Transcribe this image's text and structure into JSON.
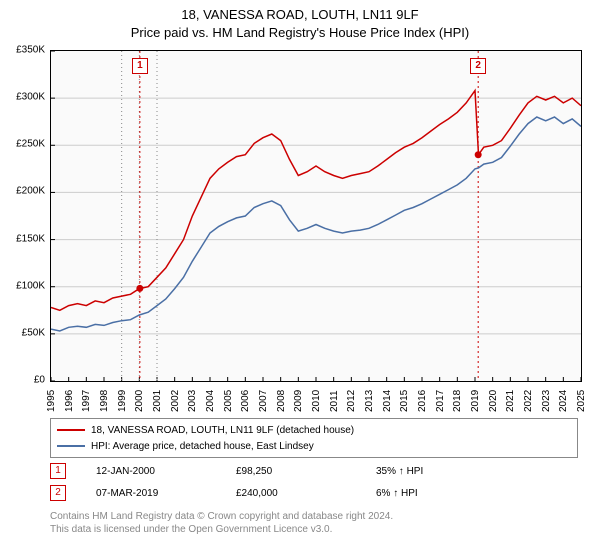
{
  "title": {
    "line1": "18, VANESSA ROAD, LOUTH, LN11 9LF",
    "line2": "Price paid vs. HM Land Registry's House Price Index (HPI)",
    "fontsize": 13,
    "color": "#000000"
  },
  "chart": {
    "type": "line",
    "background_color": "#fafafa",
    "border_color": "#000000",
    "grid_color": "#cccccc",
    "x_axis": {
      "min_year": 1995,
      "max_year": 2025,
      "tick_years": [
        1995,
        1996,
        1997,
        1998,
        1999,
        2000,
        2001,
        2002,
        2003,
        2004,
        2005,
        2006,
        2007,
        2008,
        2009,
        2010,
        2011,
        2012,
        2013,
        2014,
        2015,
        2016,
        2017,
        2018,
        2019,
        2020,
        2021,
        2022,
        2023,
        2024,
        2025
      ],
      "label_fontsize": 10,
      "label_rotation": -90
    },
    "y_axis": {
      "min": 0,
      "max": 350000,
      "tick_step": 50000,
      "tick_labels": [
        "£0",
        "£50K",
        "£100K",
        "£150K",
        "£200K",
        "£250K",
        "£300K",
        "£350K"
      ],
      "label_fontsize": 10
    },
    "series": [
      {
        "name": "18, VANESSA ROAD, LOUTH, LN11 9LF (detached house)",
        "color": "#cc0000",
        "line_width": 1.5,
        "data": [
          [
            1995,
            78000
          ],
          [
            1995.5,
            75000
          ],
          [
            1996,
            80000
          ],
          [
            1996.5,
            82000
          ],
          [
            1997,
            80000
          ],
          [
            1997.5,
            85000
          ],
          [
            1998,
            83000
          ],
          [
            1998.5,
            88000
          ],
          [
            1999,
            90000
          ],
          [
            1999.5,
            92000
          ],
          [
            2000,
            98000
          ],
          [
            2000.5,
            100000
          ],
          [
            2001,
            110000
          ],
          [
            2001.5,
            120000
          ],
          [
            2002,
            135000
          ],
          [
            2002.5,
            150000
          ],
          [
            2003,
            175000
          ],
          [
            2003.5,
            195000
          ],
          [
            2004,
            215000
          ],
          [
            2004.5,
            225000
          ],
          [
            2005,
            232000
          ],
          [
            2005.5,
            238000
          ],
          [
            2006,
            240000
          ],
          [
            2006.5,
            252000
          ],
          [
            2007,
            258000
          ],
          [
            2007.5,
            262000
          ],
          [
            2008,
            255000
          ],
          [
            2008.5,
            235000
          ],
          [
            2009,
            218000
          ],
          [
            2009.5,
            222000
          ],
          [
            2010,
            228000
          ],
          [
            2010.5,
            222000
          ],
          [
            2011,
            218000
          ],
          [
            2011.5,
            215000
          ],
          [
            2012,
            218000
          ],
          [
            2012.5,
            220000
          ],
          [
            2013,
            222000
          ],
          [
            2013.5,
            228000
          ],
          [
            2014,
            235000
          ],
          [
            2014.5,
            242000
          ],
          [
            2015,
            248000
          ],
          [
            2015.5,
            252000
          ],
          [
            2016,
            258000
          ],
          [
            2016.5,
            265000
          ],
          [
            2017,
            272000
          ],
          [
            2017.5,
            278000
          ],
          [
            2018,
            285000
          ],
          [
            2018.5,
            295000
          ],
          [
            2019,
            308000
          ],
          [
            2019.2,
            240000
          ],
          [
            2019.5,
            248000
          ],
          [
            2020,
            250000
          ],
          [
            2020.5,
            255000
          ],
          [
            2021,
            268000
          ],
          [
            2021.5,
            282000
          ],
          [
            2022,
            295000
          ],
          [
            2022.5,
            302000
          ],
          [
            2023,
            298000
          ],
          [
            2023.5,
            302000
          ],
          [
            2024,
            295000
          ],
          [
            2024.5,
            300000
          ],
          [
            2025,
            292000
          ]
        ]
      },
      {
        "name": "HPI: Average price, detached house, East Lindsey",
        "color": "#4a6fa5",
        "line_width": 1.5,
        "data": [
          [
            1995,
            55000
          ],
          [
            1995.5,
            53000
          ],
          [
            1996,
            57000
          ],
          [
            1996.5,
            58000
          ],
          [
            1997,
            57000
          ],
          [
            1997.5,
            60000
          ],
          [
            1998,
            59000
          ],
          [
            1998.5,
            62000
          ],
          [
            1999,
            64000
          ],
          [
            1999.5,
            65000
          ],
          [
            2000,
            70000
          ],
          [
            2000.5,
            73000
          ],
          [
            2001,
            80000
          ],
          [
            2001.5,
            87000
          ],
          [
            2002,
            98000
          ],
          [
            2002.5,
            110000
          ],
          [
            2003,
            127000
          ],
          [
            2003.5,
            142000
          ],
          [
            2004,
            157000
          ],
          [
            2004.5,
            164000
          ],
          [
            2005,
            169000
          ],
          [
            2005.5,
            173000
          ],
          [
            2006,
            175000
          ],
          [
            2006.5,
            184000
          ],
          [
            2007,
            188000
          ],
          [
            2007.5,
            191000
          ],
          [
            2008,
            186000
          ],
          [
            2008.5,
            171000
          ],
          [
            2009,
            159000
          ],
          [
            2009.5,
            162000
          ],
          [
            2010,
            166000
          ],
          [
            2010.5,
            162000
          ],
          [
            2011,
            159000
          ],
          [
            2011.5,
            157000
          ],
          [
            2012,
            159000
          ],
          [
            2012.5,
            160000
          ],
          [
            2013,
            162000
          ],
          [
            2013.5,
            166000
          ],
          [
            2014,
            171000
          ],
          [
            2014.5,
            176000
          ],
          [
            2015,
            181000
          ],
          [
            2015.5,
            184000
          ],
          [
            2016,
            188000
          ],
          [
            2016.5,
            193000
          ],
          [
            2017,
            198000
          ],
          [
            2017.5,
            203000
          ],
          [
            2018,
            208000
          ],
          [
            2018.5,
            215000
          ],
          [
            2019,
            225000
          ],
          [
            2019.2,
            226000
          ],
          [
            2019.5,
            230000
          ],
          [
            2020,
            232000
          ],
          [
            2020.5,
            237000
          ],
          [
            2021,
            249000
          ],
          [
            2021.5,
            262000
          ],
          [
            2022,
            273000
          ],
          [
            2022.5,
            280000
          ],
          [
            2023,
            276000
          ],
          [
            2023.5,
            280000
          ],
          [
            2024,
            273000
          ],
          [
            2024.5,
            278000
          ],
          [
            2025,
            270000
          ]
        ]
      }
    ],
    "markers": [
      {
        "id": "1",
        "year": 2000.03,
        "value": 98250,
        "color": "#cc0000",
        "line_dash": "2,3"
      },
      {
        "id": "2",
        "year": 2019.18,
        "value": 240000,
        "color": "#cc0000",
        "line_dash": "2,3"
      }
    ],
    "x_guides_dotted": {
      "years": [
        1999,
        2000,
        2001
      ],
      "color": "#888888",
      "dash": "1,3"
    }
  },
  "legend": {
    "border_color": "#888888",
    "fontsize": 10,
    "items": [
      {
        "label": "18, VANESSA ROAD, LOUTH, LN11 9LF (detached house)",
        "color": "#cc0000"
      },
      {
        "label": "HPI: Average price, detached house, East Lindsey",
        "color": "#4a6fa5"
      }
    ]
  },
  "sales_table": {
    "fontsize": 10,
    "rows": [
      {
        "badge": "1",
        "badge_color": "#cc0000",
        "date": "12-JAN-2000",
        "price": "£98,250",
        "hpi_diff": "35% ↑ HPI"
      },
      {
        "badge": "2",
        "badge_color": "#cc0000",
        "date": "07-MAR-2019",
        "price": "£240,000",
        "hpi_diff": "6% ↑ HPI"
      }
    ]
  },
  "footer": {
    "line1": "Contains HM Land Registry data © Crown copyright and database right 2024.",
    "line2": "This data is licensed under the Open Government Licence v3.0.",
    "fontsize": 10,
    "color": "#888888"
  }
}
